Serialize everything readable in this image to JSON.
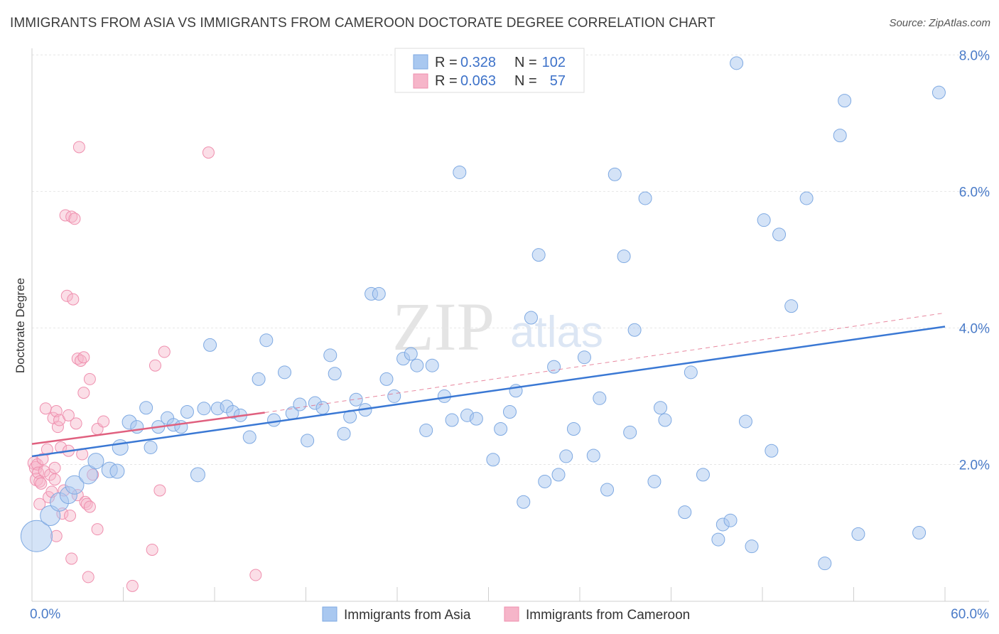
{
  "header": {
    "title": "IMMIGRANTS FROM ASIA VS IMMIGRANTS FROM CAMEROON DOCTORATE DEGREE CORRELATION CHART",
    "source": "Source: ZipAtlas.com"
  },
  "watermark": {
    "zip": "ZIP",
    "atlas": "atlas"
  },
  "colors": {
    "asia_fill": "#a9c8f0",
    "asia_stroke": "#7ea9e2",
    "asia_line": "#3a78d4",
    "cameroon_fill": "#f6b5c9",
    "cameroon_stroke": "#ef8fae",
    "cameroon_line": "#e0607f",
    "grid": "#e6e6e6",
    "tick_label": "#4a7bc8"
  },
  "legend": {
    "rows": [
      {
        "r_label": "R =",
        "r_value": "0.328",
        "n_label": "N =",
        "n_value": "102"
      },
      {
        "r_label": "R =",
        "r_value": "0.063",
        "n_label": "N =",
        "n_value": "57"
      }
    ]
  },
  "chart_data": {
    "type": "scatter",
    "title": "IMMIGRANTS FROM ASIA VS IMMIGRANTS FROM CAMEROON DOCTORATE DEGREE CORRELATION CHART",
    "xlabel": "",
    "ylabel": "Doctorate Degree",
    "xlim": [
      0,
      60
    ],
    "ylim": [
      0,
      8.3
    ],
    "x_tick_labels": [
      "0.0%",
      "60.0%"
    ],
    "y_ticks": [
      2,
      4,
      6,
      8
    ],
    "y_tick_labels": [
      "2.0%",
      "4.0%",
      "6.0%",
      "8.0%"
    ],
    "grid": true,
    "legend_position": "top-center",
    "series": [
      {
        "name": "Immigrants from Asia",
        "r": 0.328,
        "n": 102,
        "trend": {
          "x": [
            0,
            60
          ],
          "y": [
            2.12,
            4.02
          ],
          "style": "solid"
        },
        "points": [
          [
            0.3,
            0.95,
            22
          ],
          [
            1.2,
            1.25,
            14
          ],
          [
            1.8,
            1.45,
            13
          ],
          [
            2.4,
            1.55,
            12
          ],
          [
            2.8,
            1.7,
            13
          ],
          [
            3.7,
            1.85,
            13
          ],
          [
            4.2,
            2.05,
            11
          ],
          [
            5.1,
            1.92,
            11
          ],
          [
            5.6,
            1.9,
            10
          ],
          [
            5.8,
            2.25,
            11
          ],
          [
            6.4,
            2.62,
            10
          ],
          [
            6.9,
            2.55,
            9
          ],
          [
            7.5,
            2.83,
            9
          ],
          [
            7.8,
            2.25,
            9
          ],
          [
            8.3,
            2.55,
            9
          ],
          [
            8.9,
            2.68,
            9
          ],
          [
            9.3,
            2.58,
            9
          ],
          [
            9.8,
            2.55,
            9
          ],
          [
            10.2,
            2.77,
            9
          ],
          [
            10.9,
            1.85,
            10
          ],
          [
            11.3,
            2.82,
            9
          ],
          [
            11.7,
            3.75,
            9
          ],
          [
            12.2,
            2.82,
            9
          ],
          [
            12.8,
            2.85,
            9
          ],
          [
            13.2,
            2.77,
            9
          ],
          [
            13.7,
            2.72,
            9
          ],
          [
            14.3,
            2.4,
            9
          ],
          [
            14.9,
            3.25,
            9
          ],
          [
            15.4,
            3.82,
            9
          ],
          [
            15.9,
            2.65,
            9
          ],
          [
            16.6,
            3.35,
            9
          ],
          [
            17.1,
            2.75,
            9
          ],
          [
            17.6,
            2.88,
            9
          ],
          [
            18.1,
            2.35,
            9
          ],
          [
            18.6,
            2.9,
            9
          ],
          [
            19.1,
            2.83,
            9
          ],
          [
            19.6,
            3.6,
            9
          ],
          [
            19.9,
            3.33,
            9
          ],
          [
            20.5,
            2.45,
            9
          ],
          [
            20.9,
            2.7,
            9
          ],
          [
            21.3,
            2.95,
            9
          ],
          [
            21.9,
            2.8,
            9
          ],
          [
            22.3,
            4.5,
            9
          ],
          [
            22.8,
            4.5,
            9
          ],
          [
            23.3,
            3.25,
            9
          ],
          [
            23.8,
            3.0,
            9
          ],
          [
            24.4,
            3.55,
            9
          ],
          [
            24.9,
            3.62,
            9
          ],
          [
            25.3,
            3.45,
            9
          ],
          [
            25.9,
            2.5,
            9
          ],
          [
            26.3,
            3.45,
            9
          ],
          [
            27.1,
            3.0,
            9
          ],
          [
            27.6,
            2.65,
            9
          ],
          [
            28.1,
            6.28,
            9
          ],
          [
            28.6,
            2.72,
            9
          ],
          [
            29.2,
            2.67,
            9
          ],
          [
            30.3,
            2.07,
            9
          ],
          [
            30.8,
            2.52,
            9
          ],
          [
            31.4,
            2.77,
            9
          ],
          [
            31.8,
            3.08,
            9
          ],
          [
            32.3,
            1.45,
            9
          ],
          [
            32.8,
            4.15,
            9
          ],
          [
            33.3,
            5.07,
            9
          ],
          [
            33.7,
            1.75,
            9
          ],
          [
            34.3,
            3.43,
            9
          ],
          [
            34.6,
            1.85,
            9
          ],
          [
            35.1,
            2.12,
            9
          ],
          [
            35.6,
            2.52,
            9
          ],
          [
            36.3,
            3.57,
            9
          ],
          [
            36.9,
            2.13,
            9
          ],
          [
            37.3,
            2.97,
            9
          ],
          [
            37.8,
            1.63,
            9
          ],
          [
            38.3,
            6.25,
            9
          ],
          [
            38.9,
            5.05,
            9
          ],
          [
            39.3,
            2.47,
            9
          ],
          [
            39.6,
            3.97,
            9
          ],
          [
            40.3,
            5.9,
            9
          ],
          [
            40.9,
            1.75,
            9
          ],
          [
            41.3,
            2.83,
            9
          ],
          [
            41.6,
            2.65,
            9
          ],
          [
            42.9,
            1.3,
            9
          ],
          [
            43.3,
            3.35,
            9
          ],
          [
            44.1,
            1.85,
            9
          ],
          [
            45.1,
            0.9,
            9
          ],
          [
            45.4,
            1.12,
            9
          ],
          [
            45.9,
            1.18,
            9
          ],
          [
            46.3,
            7.88,
            9
          ],
          [
            46.9,
            2.63,
            9
          ],
          [
            47.3,
            0.8,
            9
          ],
          [
            48.1,
            5.58,
            9
          ],
          [
            48.6,
            2.2,
            9
          ],
          [
            49.1,
            5.37,
            9
          ],
          [
            49.9,
            4.32,
            9
          ],
          [
            50.9,
            5.9,
            9
          ],
          [
            52.1,
            0.55,
            9
          ],
          [
            53.1,
            6.82,
            9
          ],
          [
            53.4,
            7.33,
            9
          ],
          [
            54.3,
            0.98,
            9
          ],
          [
            58.3,
            1.0,
            9
          ],
          [
            59.6,
            7.45,
            9
          ]
        ]
      },
      {
        "name": "Immigrants from Cameroon",
        "r": 0.063,
        "n": 57,
        "trend_solid": {
          "x": [
            0,
            15.3
          ],
          "y": [
            2.3,
            2.76
          ]
        },
        "trend_dashed": {
          "x": [
            15.3,
            60
          ],
          "y": [
            2.76,
            4.22
          ]
        },
        "points": [
          [
            0.15,
            2.02,
            9
          ],
          [
            0.25,
            1.95,
            9
          ],
          [
            0.3,
            1.78,
            9
          ],
          [
            0.35,
            2.0,
            8
          ],
          [
            0.4,
            1.88,
            8
          ],
          [
            0.5,
            1.75,
            8
          ],
          [
            0.5,
            1.42,
            8
          ],
          [
            0.6,
            1.72,
            8
          ],
          [
            0.7,
            2.08,
            8
          ],
          [
            0.8,
            1.9,
            8
          ],
          [
            0.9,
            2.82,
            8
          ],
          [
            1.0,
            2.22,
            8
          ],
          [
            1.1,
            1.52,
            8
          ],
          [
            1.2,
            1.85,
            8
          ],
          [
            1.3,
            1.6,
            8
          ],
          [
            1.4,
            2.68,
            8
          ],
          [
            1.5,
            1.95,
            8
          ],
          [
            1.5,
            1.78,
            8
          ],
          [
            1.6,
            2.78,
            8
          ],
          [
            1.6,
            0.95,
            8
          ],
          [
            1.7,
            2.55,
            8
          ],
          [
            1.8,
            2.65,
            8
          ],
          [
            1.9,
            2.25,
            8
          ],
          [
            2.0,
            1.28,
            8
          ],
          [
            2.1,
            1.62,
            8
          ],
          [
            2.2,
            5.65,
            8
          ],
          [
            2.3,
            4.47,
            8
          ],
          [
            2.4,
            2.72,
            8
          ],
          [
            2.4,
            2.2,
            8
          ],
          [
            2.5,
            1.25,
            8
          ],
          [
            2.6,
            5.63,
            8
          ],
          [
            2.6,
            0.62,
            8
          ],
          [
            2.7,
            4.42,
            8
          ],
          [
            2.8,
            5.6,
            8
          ],
          [
            2.9,
            2.6,
            8
          ],
          [
            3.0,
            3.55,
            8
          ],
          [
            3.0,
            1.55,
            8
          ],
          [
            3.1,
            6.65,
            8
          ],
          [
            3.2,
            3.52,
            8
          ],
          [
            3.3,
            2.15,
            8
          ],
          [
            3.4,
            3.57,
            8
          ],
          [
            3.4,
            3.05,
            8
          ],
          [
            3.5,
            1.45,
            8
          ],
          [
            3.6,
            1.42,
            8
          ],
          [
            3.7,
            0.35,
            8
          ],
          [
            3.8,
            1.38,
            8
          ],
          [
            3.8,
            3.25,
            8
          ],
          [
            4.0,
            1.85,
            8
          ],
          [
            4.3,
            2.52,
            8
          ],
          [
            4.3,
            1.05,
            8
          ],
          [
            4.7,
            2.63,
            8
          ],
          [
            6.6,
            0.22,
            8
          ],
          [
            7.9,
            0.75,
            8
          ],
          [
            8.1,
            3.45,
            8
          ],
          [
            8.4,
            1.62,
            8
          ],
          [
            8.7,
            3.65,
            8
          ],
          [
            11.6,
            6.57,
            8
          ],
          [
            14.7,
            0.38,
            8
          ]
        ]
      }
    ]
  },
  "bottom_legend": {
    "items": [
      {
        "label": "Immigrants from Asia"
      },
      {
        "label": "Immigrants from Cameroon"
      }
    ]
  }
}
